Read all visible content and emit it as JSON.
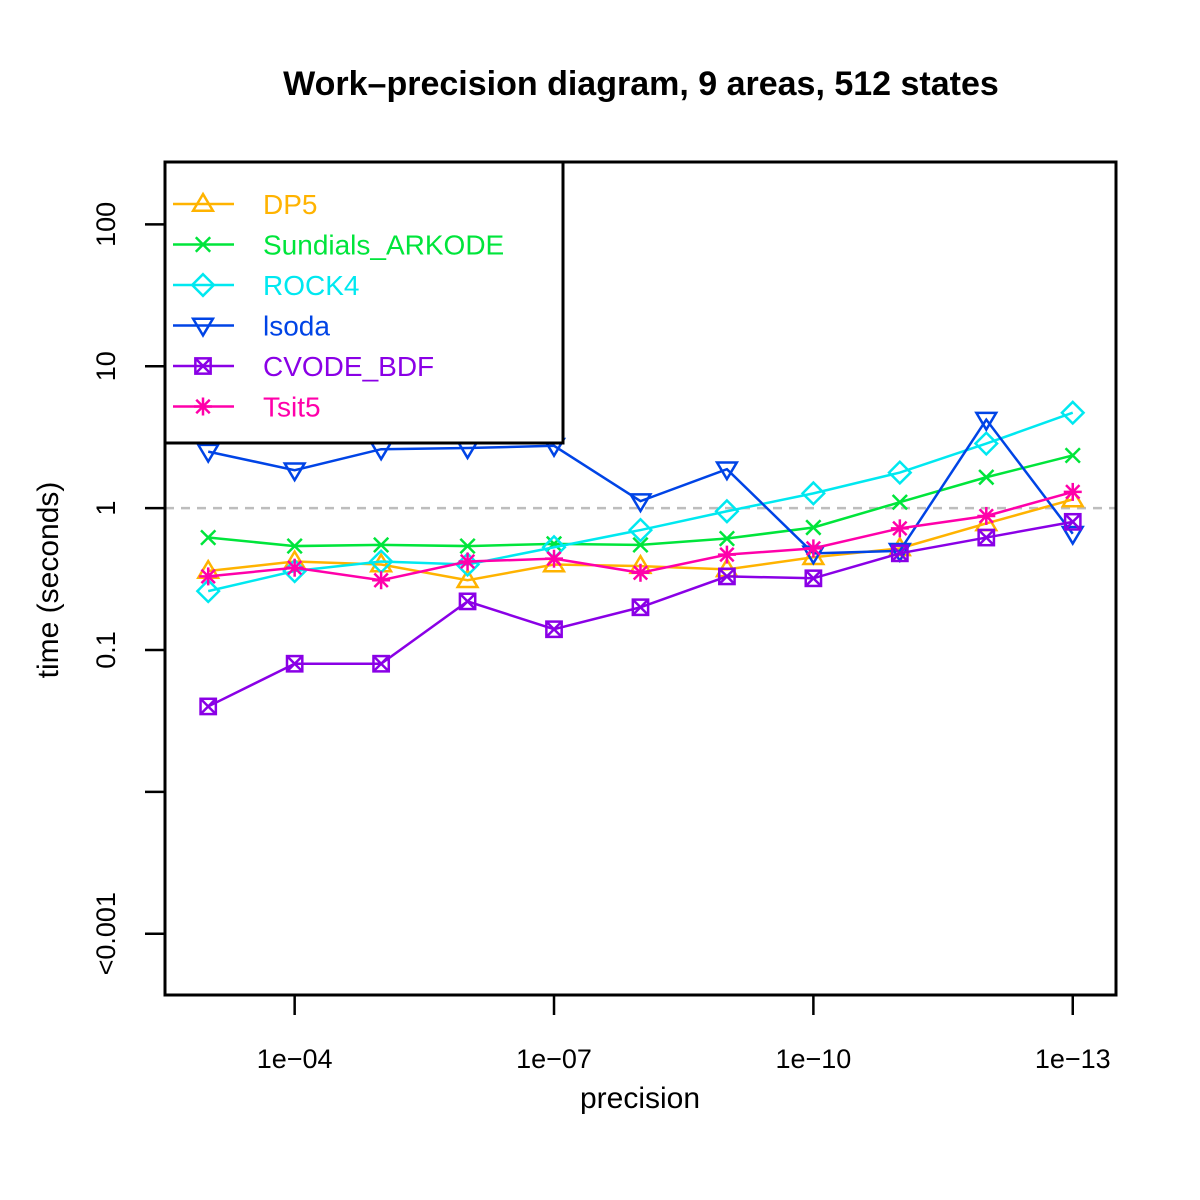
{
  "chart_data": {
    "type": "line",
    "title": "Work–precision diagram, 9 areas, 512 states",
    "xlabel": "precision",
    "ylabel": "time (seconds)",
    "x_scale": "log10-reversed",
    "y_scale": "log10",
    "xlim": [
      0.00316,
      3.16e-14
    ],
    "ylim": [
      0.00037,
      275
    ],
    "x_ticks": [
      {
        "value": 0.0001,
        "label": "1e−04"
      },
      {
        "value": 1e-07,
        "label": "1e−07"
      },
      {
        "value": 1e-10,
        "label": "1e−10"
      },
      {
        "value": 1e-13,
        "label": "1e−13"
      }
    ],
    "y_ticks": [
      {
        "value": 0.001,
        "label": "<0.001"
      },
      {
        "value": 0.01,
        "label": ""
      },
      {
        "value": 0.1,
        "label": "0.1"
      },
      {
        "value": 1,
        "label": "1"
      },
      {
        "value": 10,
        "label": "10"
      },
      {
        "value": 100,
        "label": "100"
      }
    ],
    "reference_line": {
      "y": 1,
      "style": "dashed",
      "color": "#bdbdbd"
    },
    "legend_position": "top-left",
    "x": [
      0.001,
      0.0001,
      1e-05,
      1e-06,
      1e-07,
      1e-08,
      1e-09,
      1e-10,
      1e-11,
      1e-12,
      1e-13
    ],
    "series": [
      {
        "name": "DP5",
        "color": "#ffb300",
        "marker": "triangle-up",
        "values": [
          0.36,
          0.42,
          0.4,
          0.31,
          0.4,
          0.39,
          0.37,
          0.45,
          0.52,
          0.78,
          1.15
        ]
      },
      {
        "name": "Sundials_ARKODE",
        "color": "#00e53b",
        "marker": "x",
        "values": [
          0.62,
          0.54,
          0.55,
          0.54,
          0.56,
          0.55,
          0.61,
          0.73,
          1.1,
          1.65,
          2.35
        ]
      },
      {
        "name": "ROCK4",
        "color": "#00e8f0",
        "marker": "diamond",
        "values": [
          0.26,
          0.36,
          0.42,
          0.4,
          0.53,
          0.7,
          0.95,
          1.27,
          1.78,
          2.85,
          4.7
        ]
      },
      {
        "name": "lsoda",
        "color": "#0044e6",
        "marker": "triangle-down",
        "values": [
          2.5,
          1.85,
          2.6,
          2.65,
          2.75,
          1.12,
          1.88,
          0.48,
          0.5,
          4.2,
          0.66
        ]
      },
      {
        "name": "CVODE_BDF",
        "color": "#8a00e6",
        "marker": "square-x",
        "values": [
          0.04,
          0.08,
          0.08,
          0.22,
          0.14,
          0.2,
          0.33,
          0.32,
          0.48,
          0.62,
          0.8
        ]
      },
      {
        "name": "Tsit5",
        "color": "#ff00aa",
        "marker": "asterisk",
        "values": [
          0.33,
          0.38,
          0.31,
          0.42,
          0.44,
          0.35,
          0.47,
          0.52,
          0.72,
          0.88,
          1.3
        ]
      }
    ]
  }
}
